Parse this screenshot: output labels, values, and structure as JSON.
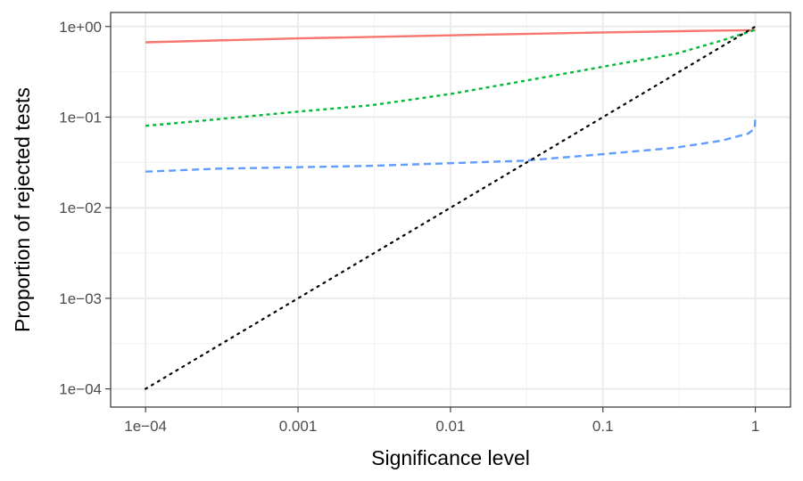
{
  "chart_data": {
    "type": "line",
    "title": "",
    "xlabel": "Significance level",
    "ylabel": "Proportion of rejected tests",
    "x_scale": "log10",
    "y_scale": "log10",
    "xlim": [
      5.9e-05,
      1.7
    ],
    "ylim": [
      6.3e-05,
      1.43
    ],
    "grid": true,
    "legend": "none",
    "x_ticks": [
      {
        "value": 0.0001,
        "label": "1e−04"
      },
      {
        "value": 0.001,
        "label": "0.001"
      },
      {
        "value": 0.01,
        "label": "0.01"
      },
      {
        "value": 0.1,
        "label": "0.1"
      },
      {
        "value": 1,
        "label": "1"
      }
    ],
    "y_ticks": [
      {
        "value": 1,
        "label": "1e+00"
      },
      {
        "value": 0.1,
        "label": "1e−01"
      },
      {
        "value": 0.01,
        "label": "1e−02"
      },
      {
        "value": 0.001,
        "label": "1e−03"
      },
      {
        "value": 0.0001,
        "label": "1e−04"
      }
    ],
    "series": [
      {
        "color": "#F8766D",
        "dash": "solid",
        "x": [
          0.0001,
          0.001,
          0.01,
          0.1,
          0.5,
          1
        ],
        "y": [
          0.67,
          0.74,
          0.8,
          0.86,
          0.9,
          0.91
        ]
      },
      {
        "color": "#00BA38",
        "dash": "dotted",
        "x": [
          0.0001,
          0.0003,
          0.001,
          0.003,
          0.01,
          0.03,
          0.1,
          0.3,
          0.6,
          1
        ],
        "y": [
          0.08,
          0.095,
          0.115,
          0.135,
          0.18,
          0.25,
          0.36,
          0.5,
          0.7,
          0.92
        ]
      },
      {
        "color": "#619CFF",
        "dash": "dashed",
        "x": [
          0.0001,
          0.0003,
          0.001,
          0.003,
          0.01,
          0.03,
          0.1,
          0.3,
          0.6,
          0.9,
          0.99,
          1
        ],
        "y": [
          0.025,
          0.027,
          0.028,
          0.029,
          0.031,
          0.033,
          0.039,
          0.046,
          0.055,
          0.066,
          0.075,
          0.105
        ]
      },
      {
        "color": "#000000",
        "dash": "dotted-fine",
        "x": [
          0.0001,
          1
        ],
        "y": [
          0.0001,
          1
        ]
      }
    ]
  }
}
